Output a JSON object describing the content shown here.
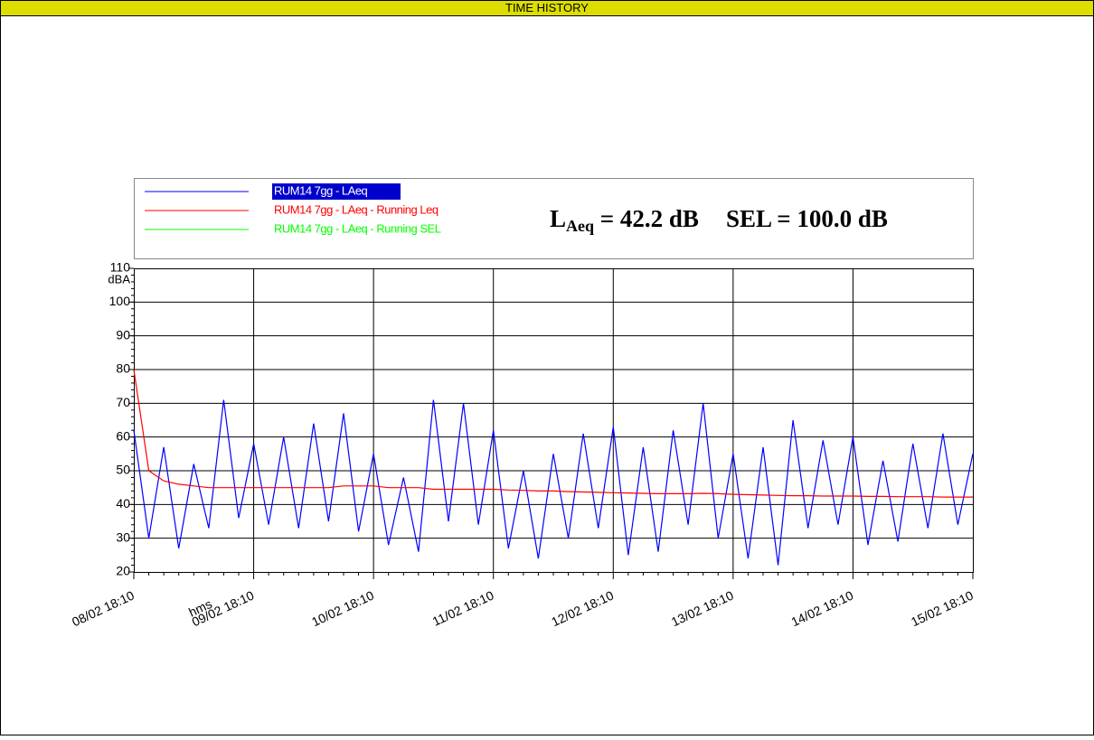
{
  "header": {
    "title": "TIME HISTORY"
  },
  "chart_data": {
    "type": "line",
    "summary": {
      "l": "L",
      "sub": "Aeq",
      "laeq": " = 42.2 dB",
      "sel": "SEL = 100.0 dB"
    },
    "y_unit": "dBA",
    "x_unit": "hms",
    "xticks": [
      "08/02 18:10",
      "09/02 18:10",
      "10/02 18:10",
      "11/02 18:10",
      "12/02 18:10",
      "13/02 18:10",
      "14/02 18:10",
      "15/02 18:10"
    ],
    "ylim": [
      20,
      110
    ],
    "yticks": [
      20,
      30,
      40,
      50,
      60,
      70,
      80,
      90,
      100,
      110
    ],
    "grid": true,
    "series": [
      {
        "name": "RUM14 7gg - LAeq",
        "color": "#0000ff",
        "values": [
          62,
          30,
          57,
          27,
          52,
          33,
          71,
          36,
          58,
          34,
          60,
          33,
          64,
          35,
          67,
          32,
          55,
          28,
          48,
          26,
          71,
          35,
          70,
          34,
          62,
          27,
          50,
          24,
          55,
          30,
          61,
          33,
          63,
          25,
          57,
          26,
          62,
          34,
          70,
          30,
          55,
          24,
          57,
          22,
          65,
          33,
          59,
          34,
          60,
          28,
          53,
          29,
          58,
          33,
          61,
          34,
          55
        ]
      },
      {
        "name": "RUM14 7gg - LAeq - Running Leq",
        "color": "#ff0000",
        "values": [
          80,
          50,
          47,
          46,
          45.5,
          45,
          45,
          45,
          45,
          45,
          45,
          45,
          45,
          45,
          45.5,
          45.5,
          45.5,
          45,
          45,
          45,
          44.5,
          44.5,
          44.5,
          44.5,
          44.5,
          44.3,
          44.2,
          44,
          44,
          43.8,
          43.7,
          43.6,
          43.5,
          43.4,
          43.3,
          43.2,
          43.2,
          43.2,
          43.3,
          43.2,
          43,
          42.9,
          42.8,
          42.7,
          42.6,
          42.6,
          42.5,
          42.5,
          42.5,
          42.4,
          42.4,
          42.3,
          42.3,
          42.3,
          42.2,
          42.2,
          42.2
        ]
      },
      {
        "name": "RUM14 7gg - LAeq - Running SEL",
        "color": "#00ff00"
      }
    ]
  }
}
